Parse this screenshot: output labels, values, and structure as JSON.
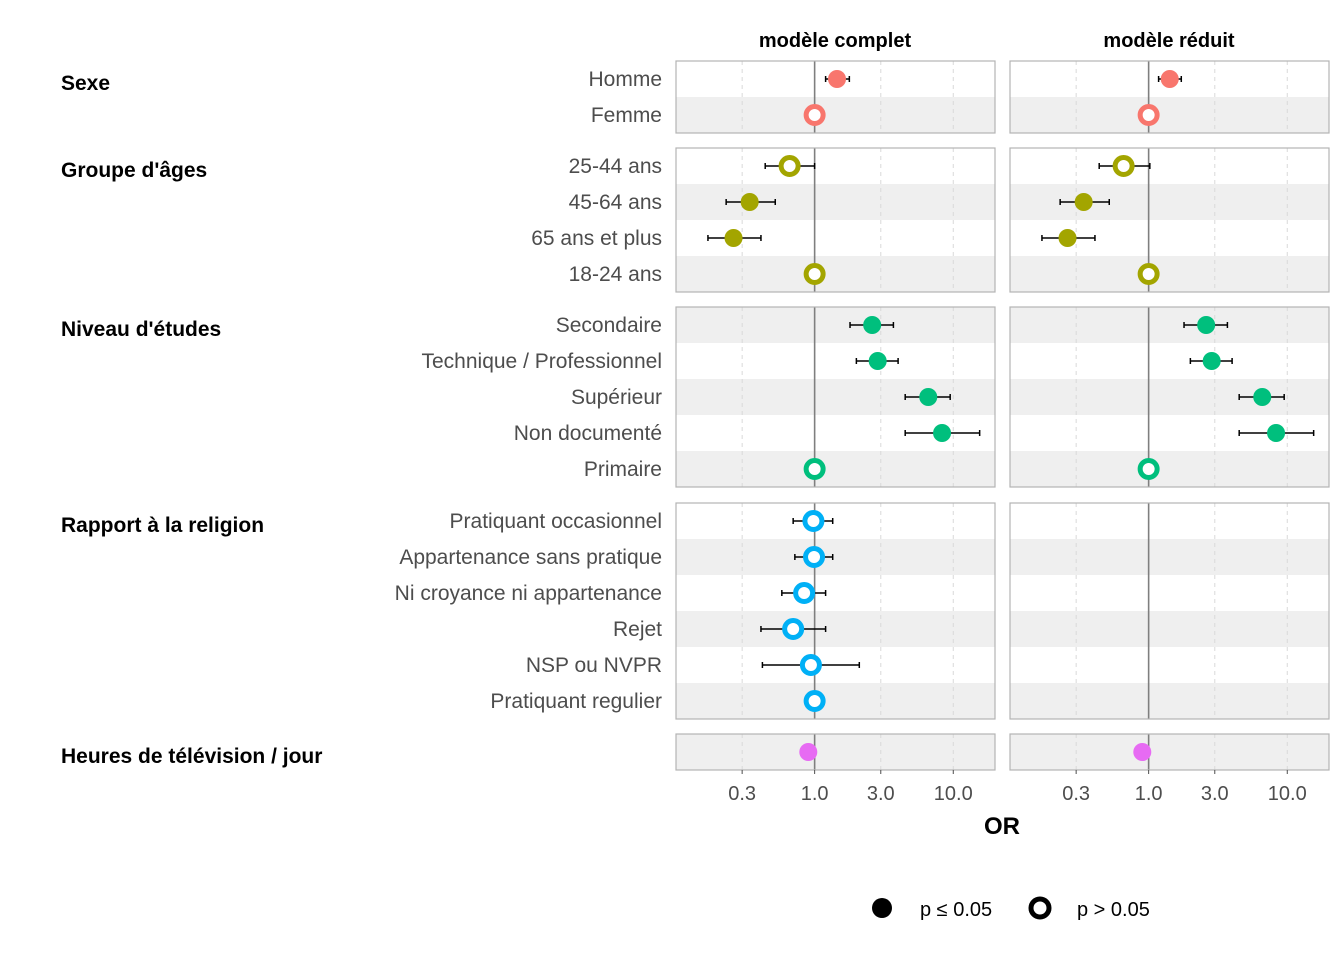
{
  "chart_data": {
    "type": "scatter",
    "subtype": "forest-plot",
    "scale": "log",
    "xlabel": "OR",
    "x_ticks": [
      0.3,
      1.0,
      3.0,
      10.0
    ],
    "x_tick_labels": [
      "0.3",
      "1.0",
      "3.0",
      "10.0"
    ],
    "xlim": [
      0.1,
      20
    ],
    "reference_line": 1.0,
    "grid": "vertical dashed",
    "legend_position": "bottom",
    "legend": [
      {
        "label": "p ≤ 0.05",
        "marker": "filled"
      },
      {
        "label": "p > 0.05",
        "marker": "open"
      }
    ],
    "facets": [
      "modèle complet",
      "modèle réduit"
    ],
    "groups": [
      {
        "name": "Sexe",
        "color": "#F8766D",
        "rows": [
          {
            "label": "Homme",
            "complet": {
              "or": 1.45,
              "lo": 1.2,
              "hi": 1.78,
              "sig": true
            },
            "reduit": {
              "or": 1.42,
              "lo": 1.18,
              "hi": 1.72,
              "sig": true
            }
          },
          {
            "label": "Femme",
            "complet": {
              "or": 1.0,
              "ref": true
            },
            "reduit": {
              "or": 1.0,
              "ref": true
            }
          }
        ]
      },
      {
        "name": "Groupe d'âges",
        "color": "#A3A500",
        "rows": [
          {
            "label": "25-44 ans",
            "complet": {
              "or": 0.66,
              "lo": 0.44,
              "hi": 1.0,
              "sig": false
            },
            "reduit": {
              "or": 0.66,
              "lo": 0.44,
              "hi": 1.02,
              "sig": false
            }
          },
          {
            "label": "45-64 ans",
            "complet": {
              "or": 0.34,
              "lo": 0.23,
              "hi": 0.52,
              "sig": true
            },
            "reduit": {
              "or": 0.34,
              "lo": 0.23,
              "hi": 0.52,
              "sig": true
            }
          },
          {
            "label": "65 ans et plus",
            "complet": {
              "or": 0.26,
              "lo": 0.17,
              "hi": 0.41,
              "sig": true
            },
            "reduit": {
              "or": 0.26,
              "lo": 0.17,
              "hi": 0.41,
              "sig": true
            }
          },
          {
            "label": "18-24 ans",
            "complet": {
              "or": 1.0,
              "ref": true
            },
            "reduit": {
              "or": 1.0,
              "ref": true
            }
          }
        ]
      },
      {
        "name": "Niveau d'études",
        "color": "#00BF7D",
        "rows": [
          {
            "label": "Secondaire",
            "complet": {
              "or": 2.6,
              "lo": 1.8,
              "hi": 3.7,
              "sig": true
            },
            "reduit": {
              "or": 2.6,
              "lo": 1.8,
              "hi": 3.7,
              "sig": true
            }
          },
          {
            "label": "Technique / Professionnel",
            "complet": {
              "or": 2.85,
              "lo": 2.0,
              "hi": 4.0,
              "sig": true
            },
            "reduit": {
              "or": 2.85,
              "lo": 2.0,
              "hi": 4.0,
              "sig": true
            }
          },
          {
            "label": "Supérieur",
            "complet": {
              "or": 6.6,
              "lo": 4.5,
              "hi": 9.5,
              "sig": true
            },
            "reduit": {
              "or": 6.6,
              "lo": 4.5,
              "hi": 9.5,
              "sig": true
            }
          },
          {
            "label": "Non documenté",
            "complet": {
              "or": 8.3,
              "lo": 4.5,
              "hi": 15.5,
              "sig": true
            },
            "reduit": {
              "or": 8.3,
              "lo": 4.5,
              "hi": 15.5,
              "sig": true
            }
          },
          {
            "label": "Primaire",
            "complet": {
              "or": 1.0,
              "ref": true
            },
            "reduit": {
              "or": 1.0,
              "ref": true
            }
          }
        ]
      },
      {
        "name": "Rapport à la religion",
        "color": "#00B0F6",
        "rows": [
          {
            "label": "Pratiquant occasionnel",
            "complet": {
              "or": 0.98,
              "lo": 0.7,
              "hi": 1.35,
              "sig": false
            },
            "reduit": null
          },
          {
            "label": "Appartenance sans pratique",
            "complet": {
              "or": 0.99,
              "lo": 0.72,
              "hi": 1.35,
              "sig": false
            },
            "reduit": null
          },
          {
            "label": "Ni croyance ni appartenance",
            "complet": {
              "or": 0.84,
              "lo": 0.58,
              "hi": 1.2,
              "sig": false
            },
            "reduit": null
          },
          {
            "label": "Rejet",
            "complet": {
              "or": 0.7,
              "lo": 0.41,
              "hi": 1.2,
              "sig": false
            },
            "reduit": null
          },
          {
            "label": "NSP ou NVPR",
            "complet": {
              "or": 0.94,
              "lo": 0.42,
              "hi": 2.1,
              "sig": false
            },
            "reduit": null
          },
          {
            "label": "Pratiquant regulier",
            "complet": {
              "or": 1.0,
              "ref": true
            },
            "reduit": null
          }
        ]
      },
      {
        "name": "Heures de télévision / jour",
        "color": "#E76BF3",
        "rows": [
          {
            "label": "",
            "complet": {
              "or": 0.9,
              "lo": 0.87,
              "hi": 0.93,
              "sig": true
            },
            "reduit": {
              "or": 0.9,
              "lo": 0.87,
              "hi": 0.93,
              "sig": true
            }
          }
        ]
      }
    ]
  }
}
